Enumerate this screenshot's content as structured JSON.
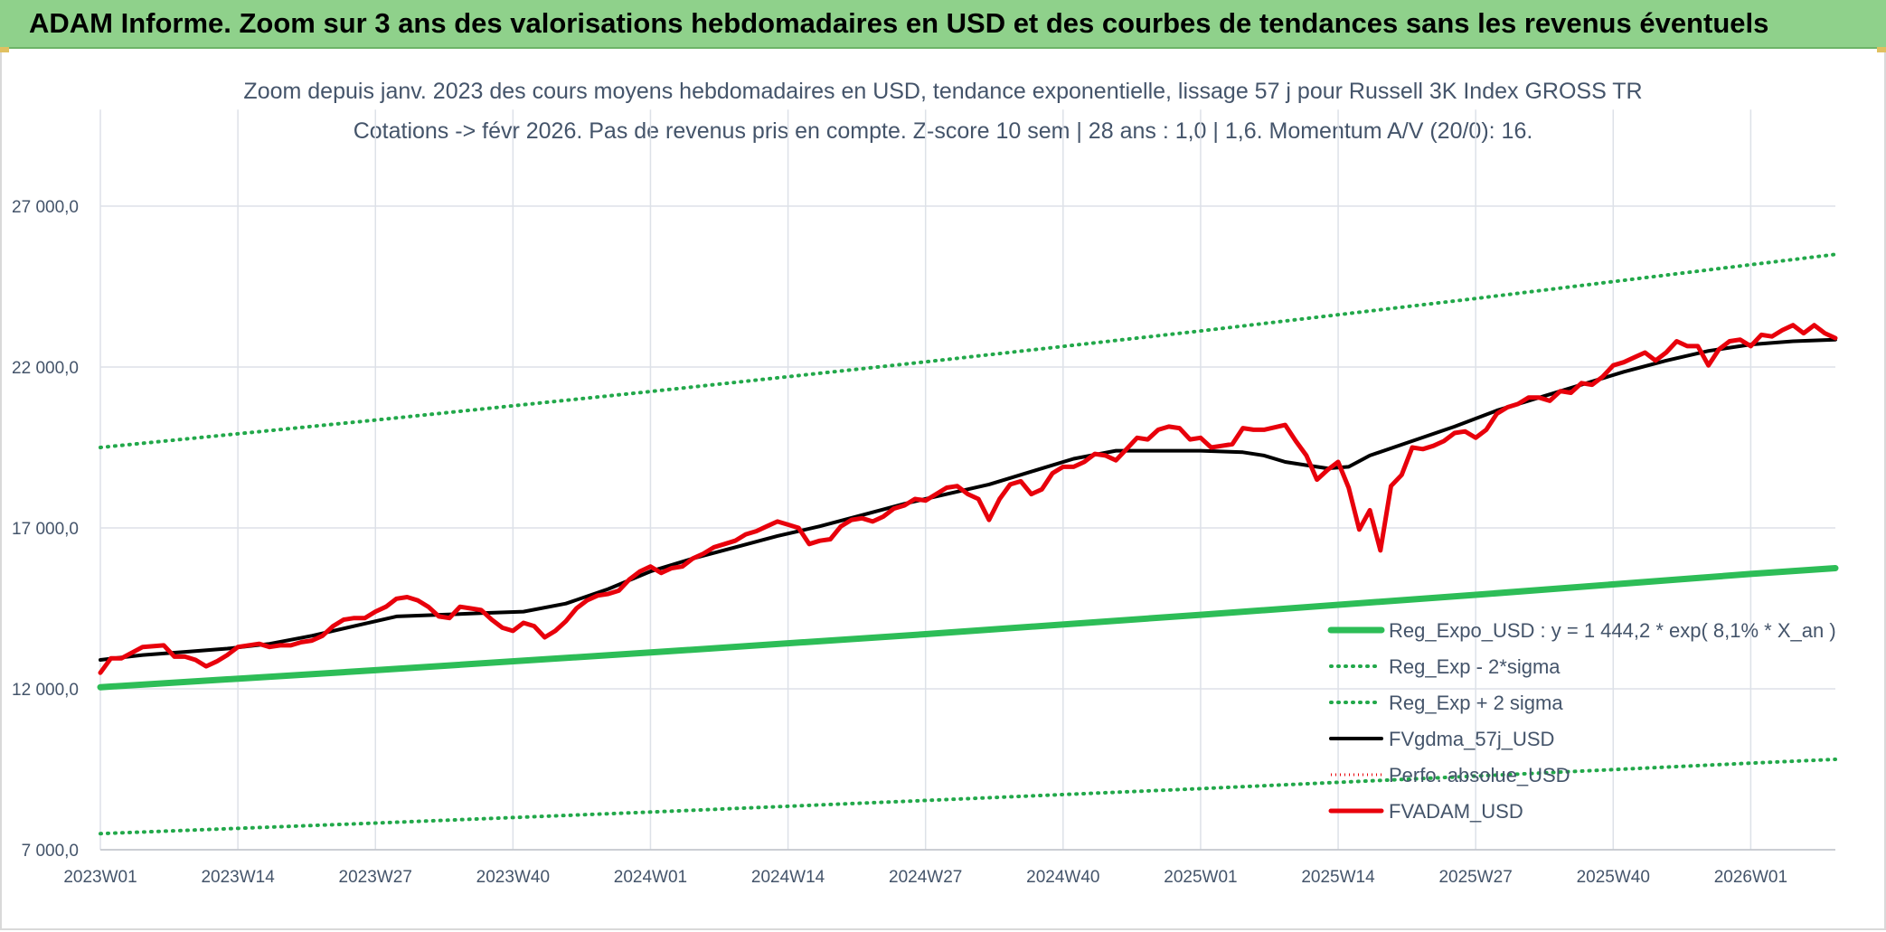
{
  "page_title": "ADAM Informe. Zoom sur 3 ans des valorisations hebdomadaires en USD et des courbes de tendances sans les revenus éventuels",
  "colors": {
    "banner": "#8fd18b",
    "trend": "#2dbd57",
    "band": "#22a84a",
    "fv_gdma": "#000000",
    "fvadam": "#e8000b",
    "perfo": "#e8000b",
    "grid": "#dde1e8",
    "text": "#44546a"
  },
  "chart_data": {
    "type": "line",
    "title": "Zoom depuis janv. 2023 des cours moyens hebdomadaires en USD, tendance exponentielle, lissage 57 j pour Russell 3K Index GROSS TR",
    "subtitle": "Cotations -> févr 2026. Pas de revenus pris en compte. Z-score 10 sem | 28 ans : 1,0 | 1,6. Momentum A/V (20/0): 16.",
    "xlabel": "",
    "ylabel": "",
    "x_tick_labels": [
      "2023W01",
      "2023W14",
      "2023W27",
      "2023W40",
      "2024W01",
      "2024W14",
      "2024W27",
      "2024W40",
      "2025W01",
      "2025W14",
      "2025W27",
      "2025W40",
      "2026W01"
    ],
    "y_tick_labels": [
      "7 000,0",
      "12 000,0",
      "17 000,0",
      "22 000,0",
      "27 000,0"
    ],
    "y_ticks": [
      7000,
      12000,
      17000,
      22000,
      27000
    ],
    "ylim": [
      7000,
      30000
    ],
    "x_range_weeks": [
      0,
      164
    ],
    "grid": true,
    "legend_position": "bottom-right",
    "series": [
      {
        "name": "Reg_Expo_USD : y = 1 444,2 * exp( 8,1% *  X_an )",
        "style": "solid-thick",
        "points": [
          [
            0,
            12050
          ],
          [
            26,
            12580
          ],
          [
            52,
            13130
          ],
          [
            78,
            13700
          ],
          [
            104,
            14300
          ],
          [
            130,
            14920
          ],
          [
            156,
            15570
          ],
          [
            164,
            15750
          ]
        ]
      },
      {
        "name": "Reg_Exp - 2*sigma",
        "style": "dotted",
        "points": [
          [
            0,
            7500
          ],
          [
            26,
            7830
          ],
          [
            52,
            8170
          ],
          [
            78,
            8530
          ],
          [
            104,
            8900
          ],
          [
            130,
            9290
          ],
          [
            156,
            9690
          ],
          [
            164,
            9810
          ]
        ]
      },
      {
        "name": "Reg_Exp + 2 sigma",
        "style": "dotted",
        "points": [
          [
            0,
            19500
          ],
          [
            26,
            20350
          ],
          [
            52,
            21240
          ],
          [
            78,
            22160
          ],
          [
            104,
            23120
          ],
          [
            130,
            24130
          ],
          [
            156,
            25180
          ],
          [
            164,
            25500
          ]
        ]
      },
      {
        "name": "FVgdma_57j_USD",
        "style": "solid",
        "points": [
          [
            0,
            12900
          ],
          [
            4,
            13050
          ],
          [
            8,
            13150
          ],
          [
            12,
            13250
          ],
          [
            16,
            13400
          ],
          [
            20,
            13650
          ],
          [
            24,
            13950
          ],
          [
            28,
            14250
          ],
          [
            32,
            14300
          ],
          [
            36,
            14350
          ],
          [
            40,
            14400
          ],
          [
            44,
            14650
          ],
          [
            48,
            15100
          ],
          [
            52,
            15650
          ],
          [
            56,
            16050
          ],
          [
            60,
            16400
          ],
          [
            64,
            16750
          ],
          [
            68,
            17050
          ],
          [
            72,
            17400
          ],
          [
            76,
            17750
          ],
          [
            80,
            18050
          ],
          [
            84,
            18350
          ],
          [
            88,
            18750
          ],
          [
            92,
            19150
          ],
          [
            96,
            19400
          ],
          [
            100,
            19400
          ],
          [
            104,
            19400
          ],
          [
            108,
            19350
          ],
          [
            110,
            19250
          ],
          [
            112,
            19050
          ],
          [
            114,
            18950
          ],
          [
            116,
            18850
          ],
          [
            118,
            18900
          ],
          [
            120,
            19250
          ],
          [
            124,
            19700
          ],
          [
            128,
            20150
          ],
          [
            132,
            20650
          ],
          [
            136,
            21050
          ],
          [
            140,
            21450
          ],
          [
            144,
            21850
          ],
          [
            148,
            22200
          ],
          [
            152,
            22500
          ],
          [
            156,
            22700
          ],
          [
            160,
            22800
          ],
          [
            164,
            22850
          ]
        ]
      },
      {
        "name": "Perfo. absolue_USD",
        "style": "dotted-red",
        "points": []
      },
      {
        "name": "FVADAM_USD",
        "style": "solid-thick",
        "points": [
          [
            0,
            12500
          ],
          [
            1,
            12950
          ],
          [
            2,
            12950
          ],
          [
            4,
            13300
          ],
          [
            6,
            13350
          ],
          [
            7,
            13000
          ],
          [
            8,
            13000
          ],
          [
            9,
            12900
          ],
          [
            10,
            12700
          ],
          [
            11,
            12850
          ],
          [
            12,
            13050
          ],
          [
            13,
            13300
          ],
          [
            15,
            13400
          ],
          [
            16,
            13300
          ],
          [
            17,
            13350
          ],
          [
            18,
            13350
          ],
          [
            19,
            13450
          ],
          [
            20,
            13500
          ],
          [
            21,
            13650
          ],
          [
            22,
            13950
          ],
          [
            23,
            14150
          ],
          [
            24,
            14200
          ],
          [
            25,
            14200
          ],
          [
            26,
            14400
          ],
          [
            27,
            14550
          ],
          [
            28,
            14800
          ],
          [
            29,
            14850
          ],
          [
            30,
            14750
          ],
          [
            31,
            14550
          ],
          [
            32,
            14250
          ],
          [
            33,
            14200
          ],
          [
            34,
            14550
          ],
          [
            35,
            14500
          ],
          [
            36,
            14450
          ],
          [
            37,
            14150
          ],
          [
            38,
            13900
          ],
          [
            39,
            13800
          ],
          [
            40,
            14050
          ],
          [
            41,
            13950
          ],
          [
            42,
            13600
          ],
          [
            43,
            13800
          ],
          [
            44,
            14100
          ],
          [
            45,
            14500
          ],
          [
            46,
            14750
          ],
          [
            47,
            14900
          ],
          [
            48,
            14950
          ],
          [
            49,
            15050
          ],
          [
            50,
            15400
          ],
          [
            51,
            15650
          ],
          [
            52,
            15800
          ],
          [
            53,
            15600
          ],
          [
            54,
            15750
          ],
          [
            55,
            15800
          ],
          [
            56,
            16050
          ],
          [
            57,
            16200
          ],
          [
            58,
            16400
          ],
          [
            59,
            16500
          ],
          [
            60,
            16600
          ],
          [
            61,
            16800
          ],
          [
            62,
            16900
          ],
          [
            63,
            17050
          ],
          [
            64,
            17200
          ],
          [
            65,
            17100
          ],
          [
            66,
            17000
          ],
          [
            67,
            16500
          ],
          [
            68,
            16600
          ],
          [
            69,
            16650
          ],
          [
            70,
            17050
          ],
          [
            71,
            17250
          ],
          [
            72,
            17300
          ],
          [
            73,
            17200
          ],
          [
            74,
            17350
          ],
          [
            75,
            17600
          ],
          [
            76,
            17700
          ],
          [
            77,
            17900
          ],
          [
            78,
            17850
          ],
          [
            79,
            18050
          ],
          [
            80,
            18250
          ],
          [
            81,
            18300
          ],
          [
            82,
            18050
          ],
          [
            83,
            17900
          ],
          [
            84,
            17250
          ],
          [
            85,
            17900
          ],
          [
            86,
            18350
          ],
          [
            87,
            18450
          ],
          [
            88,
            18050
          ],
          [
            89,
            18200
          ],
          [
            90,
            18700
          ],
          [
            91,
            18900
          ],
          [
            92,
            18900
          ],
          [
            93,
            19050
          ],
          [
            94,
            19300
          ],
          [
            95,
            19250
          ],
          [
            96,
            19100
          ],
          [
            97,
            19450
          ],
          [
            98,
            19800
          ],
          [
            99,
            19750
          ],
          [
            100,
            20050
          ],
          [
            101,
            20150
          ],
          [
            102,
            20100
          ],
          [
            103,
            19750
          ],
          [
            104,
            19800
          ],
          [
            105,
            19500
          ],
          [
            106,
            19550
          ],
          [
            107,
            19600
          ],
          [
            108,
            20100
          ],
          [
            109,
            20050
          ],
          [
            110,
            20050
          ],
          [
            112,
            20200
          ],
          [
            113,
            19700
          ],
          [
            114,
            19250
          ],
          [
            115,
            18500
          ],
          [
            116,
            18800
          ],
          [
            117,
            19050
          ],
          [
            118,
            18250
          ],
          [
            119,
            16950
          ],
          [
            120,
            17550
          ],
          [
            121,
            16300
          ],
          [
            122,
            18300
          ],
          [
            123,
            18650
          ],
          [
            124,
            19500
          ],
          [
            125,
            19450
          ],
          [
            126,
            19550
          ],
          [
            127,
            19700
          ],
          [
            128,
            19950
          ],
          [
            129,
            20000
          ],
          [
            130,
            19800
          ],
          [
            131,
            20050
          ],
          [
            132,
            20550
          ],
          [
            133,
            20750
          ],
          [
            134,
            20850
          ],
          [
            135,
            21050
          ],
          [
            136,
            21050
          ],
          [
            137,
            20950
          ],
          [
            138,
            21250
          ],
          [
            139,
            21200
          ],
          [
            140,
            21500
          ],
          [
            141,
            21450
          ],
          [
            142,
            21700
          ],
          [
            143,
            22050
          ],
          [
            144,
            22150
          ],
          [
            145,
            22300
          ],
          [
            146,
            22450
          ],
          [
            147,
            22200
          ],
          [
            148,
            22450
          ],
          [
            149,
            22800
          ],
          [
            150,
            22650
          ],
          [
            151,
            22650
          ],
          [
            152,
            22050
          ],
          [
            153,
            22550
          ],
          [
            154,
            22800
          ],
          [
            155,
            22850
          ],
          [
            156,
            22650
          ],
          [
            157,
            23000
          ],
          [
            158,
            22950
          ],
          [
            159,
            23150
          ],
          [
            160,
            23300
          ],
          [
            161,
            23050
          ],
          [
            162,
            23300
          ],
          [
            163,
            23050
          ],
          [
            164,
            22900
          ]
        ]
      }
    ]
  }
}
